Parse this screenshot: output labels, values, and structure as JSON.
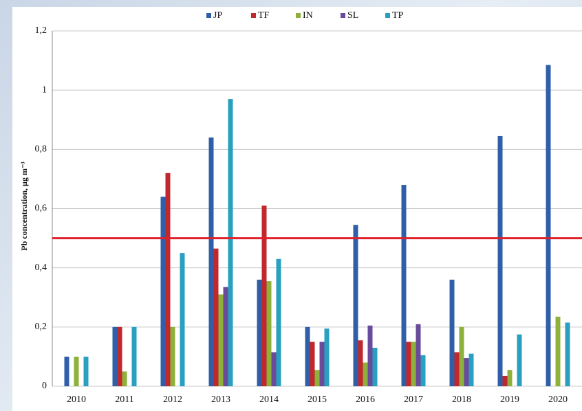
{
  "chart_data": {
    "type": "bar",
    "y_label": "Pb concentration, µg m⁻³",
    "categories": [
      "2010",
      "2011",
      "2012",
      "2013",
      "2014",
      "2015",
      "2016",
      "2017",
      "2018",
      "2019",
      "2020"
    ],
    "series": [
      {
        "name": "JP",
        "color": "#2f5fa8",
        "values": [
          0.1,
          0.2,
          0.64,
          0.84,
          0.36,
          0.2,
          0.545,
          0.68,
          0.36,
          0.845,
          1.085
        ]
      },
      {
        "name": "TF",
        "color": "#c0282d",
        "values": [
          0,
          0.2,
          0.72,
          0.465,
          0.61,
          0.15,
          0.155,
          0.15,
          0.115,
          0.035,
          0
        ]
      },
      {
        "name": "IN",
        "color": "#8db13b",
        "values": [
          0.1,
          0.05,
          0.2,
          0.31,
          0.355,
          0.055,
          0.08,
          0.15,
          0.2,
          0.055,
          0.235
        ]
      },
      {
        "name": "SL",
        "color": "#6a4a9a",
        "values": [
          0,
          0,
          0,
          0.335,
          0.115,
          0.15,
          0.205,
          0.21,
          0.095,
          0,
          0
        ]
      },
      {
        "name": "TP",
        "color": "#2aa0c0",
        "values": [
          0.1,
          0.2,
          0.45,
          0.97,
          0.43,
          0.195,
          0.13,
          0.105,
          0.11,
          0.175,
          0.215
        ]
      }
    ],
    "ylim": [
      0,
      1.2
    ],
    "yticks": [
      0,
      {
        "value": 0.2,
        "label": "0,2"
      },
      {
        "value": 0.4,
        "label": "0,4"
      },
      {
        "value": 0.6,
        "label": "0,6"
      },
      {
        "value": 0.8,
        "label": "0,8"
      },
      1,
      {
        "value": 1.2,
        "label": "1,2"
      }
    ],
    "grid": true,
    "reference_line": {
      "value": 0.5,
      "color": "#e0202a"
    },
    "legend": "top"
  }
}
